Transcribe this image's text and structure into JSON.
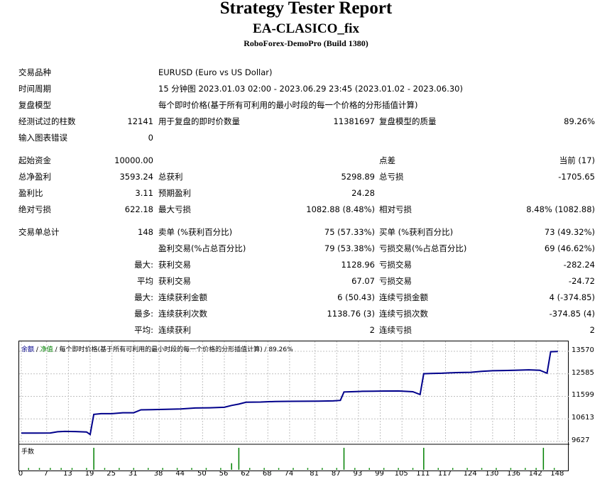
{
  "header": {
    "title": "Strategy Tester Report",
    "subtitle": "EA-CLASICO_fix",
    "build": "RoboForex-DemoPro (Build 1380)"
  },
  "info": {
    "symbol_label": "交易品种",
    "symbol_value": "EURUSD (Euro vs US Dollar)",
    "period_label": "时间周期",
    "period_value": "15 分钟图 2023.01.03 02:00 - 2023.06.29 23:45 (2023.01.02 - 2023.06.30)",
    "model_label": "复盘模型",
    "model_value": "每个即时价格(基于所有可利用的最小时段的每一个价格的分形插值计算)",
    "bars_label": "经测试过的柱数",
    "bars_value": "12141",
    "ticks_label": "用于复盘的即时价数量",
    "ticks_value": "11381697",
    "quality_label": "复盘模型的质量",
    "quality_value": "89.26%",
    "errors_label": "输入图表错误",
    "errors_value": "0"
  },
  "stats": {
    "deposit_label": "起始资金",
    "deposit_value": "10000.00",
    "spread_label": "点差",
    "spread_value": "当前 (17)",
    "net_label": "总净盈利",
    "net_value": "3593.24",
    "gross_profit_label": "总获利",
    "gross_profit_value": "5298.89",
    "gross_loss_label": "总亏损",
    "gross_loss_value": "-1705.65",
    "pf_label": "盈利比",
    "pf_value": "3.11",
    "payoff_label": "预期盈利",
    "payoff_value": "24.28",
    "abs_dd_label": "绝对亏损",
    "abs_dd_value": "622.18",
    "max_dd_label": "最大亏损",
    "max_dd_value": "1082.88 (8.48%)",
    "rel_dd_label": "相对亏损",
    "rel_dd_value": "8.48% (1082.88)"
  },
  "trades": {
    "total_label": "交易单总计",
    "total_value": "148",
    "short_label": "卖单 (%获利百分比)",
    "short_value": "75 (57.33%)",
    "long_label": "买单 (%获利百分比)",
    "long_value": "73 (49.32%)",
    "profit_trades_label": "盈利交易(%占总百分比)",
    "profit_trades_value": "79 (53.38%)",
    "loss_trades_label": "亏损交易(%占总百分比)",
    "loss_trades_value": "69 (46.62%)",
    "largest_prefix": "最大:",
    "largest_profit_label": "获利交易",
    "largest_profit_value": "1128.96",
    "largest_loss_label": "亏损交易",
    "largest_loss_value": "-282.24",
    "average_prefix": "平均",
    "avg_profit_label": "获利交易",
    "avg_profit_value": "67.07",
    "avg_loss_label": "亏损交易",
    "avg_loss_value": "-24.72",
    "max_prefix": "最大:",
    "max_cons_wins_label": "连续获利金额",
    "max_cons_wins_value": "6 (50.43)",
    "max_cons_losses_label": "连续亏损金额",
    "max_cons_losses_value": "4 (-374.85)",
    "most_prefix": "最多:",
    "most_cons_profit_label": "连续获利次数",
    "most_cons_profit_value": "1138.76 (3)",
    "most_cons_loss_label": "连续亏损次数",
    "most_cons_loss_value": "-374.85 (4)",
    "avg2_prefix": "平均:",
    "avg_cons_wins_label": "连续获利",
    "avg_cons_wins_value": "2",
    "avg_cons_losses_label": "连续亏损",
    "avg_cons_losses_value": "2"
  },
  "chart_legend": {
    "balance": "余额",
    "sep1": " / ",
    "equity": "净值",
    "rest": " / 每个即时价格(基于所有可利用的最小时段的每一个价格的分形插值计算) / 89.26%"
  },
  "lots_label": "手数",
  "colors": {
    "balance": "#00008b",
    "lots": "#008000",
    "grid": "#c0c0c0"
  },
  "chart_data": {
    "type": "line",
    "series": [
      {
        "name": "余额",
        "x": [
          0,
          4,
          8,
          10,
          12,
          15,
          18,
          19,
          20,
          22,
          25,
          28,
          31,
          33,
          36,
          40,
          44,
          48,
          52,
          56,
          58,
          60,
          62,
          66,
          70,
          74,
          78,
          82,
          86,
          88,
          89,
          91,
          94,
          97,
          100,
          104,
          108,
          110,
          111,
          113,
          116,
          120,
          124,
          127,
          130,
          133,
          136,
          140,
          143,
          145,
          146,
          148
        ],
        "y": [
          9990,
          9990,
          9995,
          10050,
          10065,
          10060,
          10040,
          9930,
          10810,
          10840,
          10840,
          10880,
          10880,
          11010,
          11015,
          11030,
          11050,
          11090,
          11100,
          11120,
          11200,
          11260,
          11340,
          11350,
          11375,
          11380,
          11385,
          11390,
          11400,
          11420,
          11790,
          11800,
          11820,
          11825,
          11830,
          11835,
          11800,
          11680,
          12590,
          12600,
          12610,
          12640,
          12650,
          12690,
          12720,
          12730,
          12740,
          12760,
          12740,
          12610,
          13550,
          13560
        ]
      }
    ],
    "lots_x": [
      2,
      5,
      8,
      11,
      14,
      18,
      20,
      23,
      27,
      31,
      35,
      39,
      43,
      47,
      51,
      55,
      58,
      60,
      63,
      67,
      71,
      75,
      79,
      83,
      87,
      89,
      92,
      96,
      100,
      104,
      108,
      111,
      115,
      119,
      123,
      127,
      131,
      135,
      139,
      142,
      144,
      147
    ],
    "lots_h": [
      0.08,
      0.08,
      0.08,
      0.08,
      0.08,
      0.08,
      1,
      0.08,
      0.08,
      0.08,
      0.08,
      0.08,
      0.08,
      0.08,
      0.08,
      0.08,
      0.3,
      1,
      0.08,
      0.08,
      0.08,
      0.08,
      0.08,
      0.08,
      0.08,
      1,
      0.08,
      0.08,
      0.08,
      0.08,
      0.08,
      1,
      0.08,
      0.08,
      0.08,
      0.08,
      0.08,
      0.08,
      0.08,
      0.08,
      1,
      0.08
    ],
    "xlim": [
      0,
      150
    ],
    "ylim": [
      9627,
      13570
    ],
    "x_ticks": [
      "0",
      "7",
      "13",
      "19",
      "25",
      "31",
      "38",
      "44",
      "50",
      "56",
      "62",
      "68",
      "74",
      "81",
      "87",
      "93",
      "99",
      "105",
      "111",
      "117",
      "124",
      "130",
      "136",
      "142",
      "148"
    ],
    "y_ticks": [
      "13570",
      "12585",
      "11599",
      "10613",
      "9627"
    ],
    "grid": true
  }
}
